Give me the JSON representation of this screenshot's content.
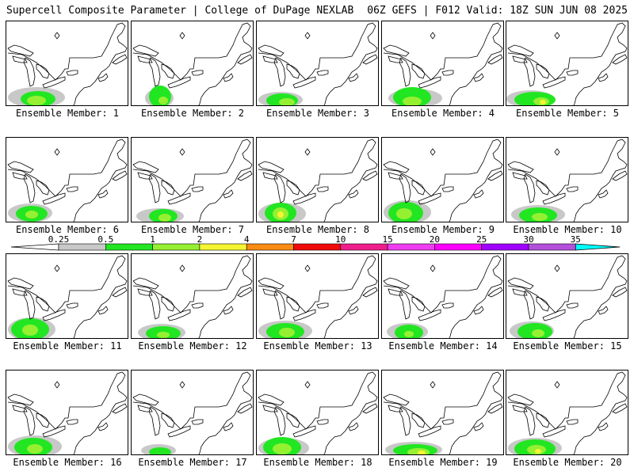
{
  "header": {
    "title_left": "Supercell Composite Parameter | College of DuPage NEXLAB",
    "title_right": "06Z GEFS | F012 Valid: 18Z SUN JUN 08 2025"
  },
  "legend": {
    "ticks": [
      "0.25",
      "0.5",
      "1",
      "2",
      "4",
      "7",
      "10",
      "15",
      "20",
      "25",
      "30",
      "35"
    ],
    "colors": [
      "#c8c8c8",
      "#22e622",
      "#96f032",
      "#f5f532",
      "#fa8c14",
      "#f00a0a",
      "#f01e8c",
      "#f03cf0",
      "#ff00ff",
      "#a000ff",
      "#b450dc",
      "#00ffff"
    ]
  },
  "panels": [
    {
      "label": "Ensemble Member: 1",
      "blobs": [
        {
          "level": 0,
          "cx": 38,
          "cy": 96,
          "rx": 36,
          "ry": 13
        },
        {
          "level": 1,
          "cx": 40,
          "cy": 98,
          "rx": 22,
          "ry": 10
        },
        {
          "level": 2,
          "cx": 38,
          "cy": 100,
          "rx": 12,
          "ry": 6
        }
      ]
    },
    {
      "label": "Ensemble Member: 2",
      "blobs": [
        {
          "level": 0,
          "cx": 35,
          "cy": 97,
          "rx": 18,
          "ry": 12
        },
        {
          "level": 1,
          "cx": 36,
          "cy": 95,
          "rx": 14,
          "ry": 14
        },
        {
          "level": 2,
          "cx": 40,
          "cy": 100,
          "rx": 6,
          "ry": 5
        }
      ]
    },
    {
      "label": "Ensemble Member: 3",
      "blobs": [
        {
          "level": 0,
          "cx": 30,
          "cy": 99,
          "rx": 28,
          "ry": 10
        },
        {
          "level": 1,
          "cx": 32,
          "cy": 100,
          "rx": 20,
          "ry": 9
        },
        {
          "level": 2,
          "cx": 38,
          "cy": 102,
          "rx": 10,
          "ry": 5
        }
      ]
    },
    {
      "label": "Ensemble Member: 4",
      "blobs": [
        {
          "level": 0,
          "cx": 42,
          "cy": 97,
          "rx": 34,
          "ry": 12
        },
        {
          "level": 1,
          "cx": 38,
          "cy": 96,
          "rx": 24,
          "ry": 13
        },
        {
          "level": 2,
          "cx": 38,
          "cy": 101,
          "rx": 12,
          "ry": 6
        }
      ]
    },
    {
      "label": "Ensemble Member: 5",
      "blobs": [
        {
          "level": 0,
          "cx": 30,
          "cy": 98,
          "rx": 30,
          "ry": 11
        },
        {
          "level": 1,
          "cx": 36,
          "cy": 99,
          "rx": 26,
          "ry": 10
        },
        {
          "level": 2,
          "cx": 44,
          "cy": 101,
          "rx": 10,
          "ry": 5
        },
        {
          "level": 3,
          "cx": 46,
          "cy": 102,
          "rx": 4,
          "ry": 3
        }
      ]
    },
    {
      "label": "Ensemble Member: 6",
      "blobs": [
        {
          "level": 0,
          "cx": 30,
          "cy": 95,
          "rx": 28,
          "ry": 12
        },
        {
          "level": 1,
          "cx": 32,
          "cy": 96,
          "rx": 20,
          "ry": 10
        },
        {
          "level": 2,
          "cx": 32,
          "cy": 97,
          "rx": 8,
          "ry": 5
        }
      ]
    },
    {
      "label": "Ensemble Member: 7",
      "blobs": [
        {
          "level": 0,
          "cx": 36,
          "cy": 99,
          "rx": 30,
          "ry": 10
        },
        {
          "level": 1,
          "cx": 40,
          "cy": 99,
          "rx": 18,
          "ry": 9
        },
        {
          "level": 2,
          "cx": 42,
          "cy": 101,
          "rx": 8,
          "ry": 5
        }
      ]
    },
    {
      "label": "Ensemble Member: 8",
      "blobs": [
        {
          "level": 0,
          "cx": 32,
          "cy": 96,
          "rx": 30,
          "ry": 14
        },
        {
          "level": 1,
          "cx": 30,
          "cy": 95,
          "rx": 20,
          "ry": 13
        },
        {
          "level": 2,
          "cx": 30,
          "cy": 96,
          "rx": 10,
          "ry": 8
        },
        {
          "level": 3,
          "cx": 30,
          "cy": 97,
          "rx": 4,
          "ry": 4
        }
      ]
    },
    {
      "label": "Ensemble Member: 9",
      "blobs": [
        {
          "level": 0,
          "cx": 32,
          "cy": 94,
          "rx": 30,
          "ry": 15
        },
        {
          "level": 1,
          "cx": 30,
          "cy": 95,
          "rx": 22,
          "ry": 14
        },
        {
          "level": 2,
          "cx": 28,
          "cy": 96,
          "rx": 10,
          "ry": 7
        }
      ]
    },
    {
      "label": "Ensemble Member: 10",
      "blobs": [
        {
          "level": 0,
          "cx": 40,
          "cy": 97,
          "rx": 34,
          "ry": 12
        },
        {
          "level": 1,
          "cx": 40,
          "cy": 98,
          "rx": 24,
          "ry": 10
        },
        {
          "level": 2,
          "cx": 42,
          "cy": 100,
          "rx": 10,
          "ry": 5
        }
      ]
    },
    {
      "label": "Ensemble Member: 11",
      "blobs": [
        {
          "level": 0,
          "cx": 32,
          "cy": 95,
          "rx": 30,
          "ry": 15
        },
        {
          "level": 1,
          "cx": 30,
          "cy": 95,
          "rx": 24,
          "ry": 14
        },
        {
          "level": 2,
          "cx": 30,
          "cy": 96,
          "rx": 10,
          "ry": 7
        }
      ]
    },
    {
      "label": "Ensemble Member: 12",
      "blobs": [
        {
          "level": 0,
          "cx": 38,
          "cy": 99,
          "rx": 30,
          "ry": 11
        },
        {
          "level": 1,
          "cx": 40,
          "cy": 100,
          "rx": 22,
          "ry": 9
        },
        {
          "level": 2,
          "cx": 40,
          "cy": 102,
          "rx": 8,
          "ry": 4
        }
      ]
    },
    {
      "label": "Ensemble Member: 13",
      "blobs": [
        {
          "level": 0,
          "cx": 36,
          "cy": 97,
          "rx": 34,
          "ry": 13
        },
        {
          "level": 1,
          "cx": 36,
          "cy": 98,
          "rx": 24,
          "ry": 11
        },
        {
          "level": 2,
          "cx": 38,
          "cy": 99,
          "rx": 10,
          "ry": 6
        }
      ]
    },
    {
      "label": "Ensemble Member: 14",
      "blobs": [
        {
          "level": 0,
          "cx": 32,
          "cy": 98,
          "rx": 26,
          "ry": 11
        },
        {
          "level": 1,
          "cx": 34,
          "cy": 99,
          "rx": 18,
          "ry": 10
        },
        {
          "level": 2,
          "cx": 34,
          "cy": 101,
          "rx": 6,
          "ry": 4
        }
      ]
    },
    {
      "label": "Ensemble Member: 15",
      "blobs": [
        {
          "level": 0,
          "cx": 32,
          "cy": 97,
          "rx": 28,
          "ry": 12
        },
        {
          "level": 1,
          "cx": 36,
          "cy": 98,
          "rx": 22,
          "ry": 11
        },
        {
          "level": 2,
          "cx": 40,
          "cy": 100,
          "rx": 8,
          "ry": 5
        }
      ]
    },
    {
      "label": "Ensemble Member: 16",
      "blobs": [
        {
          "level": 0,
          "cx": 36,
          "cy": 96,
          "rx": 34,
          "ry": 14
        },
        {
          "level": 1,
          "cx": 34,
          "cy": 97,
          "rx": 24,
          "ry": 12
        },
        {
          "level": 2,
          "cx": 36,
          "cy": 99,
          "rx": 10,
          "ry": 6
        }
      ]
    },
    {
      "label": "Ensemble Member: 17",
      "blobs": [
        {
          "level": 0,
          "cx": 34,
          "cy": 101,
          "rx": 22,
          "ry": 8
        },
        {
          "level": 1,
          "cx": 36,
          "cy": 103,
          "rx": 14,
          "ry": 6
        }
      ]
    },
    {
      "label": "Ensemble Member: 18",
      "blobs": [
        {
          "level": 0,
          "cx": 34,
          "cy": 98,
          "rx": 32,
          "ry": 13
        },
        {
          "level": 1,
          "cx": 32,
          "cy": 97,
          "rx": 24,
          "ry": 13
        },
        {
          "level": 2,
          "cx": 32,
          "cy": 99,
          "rx": 12,
          "ry": 7
        }
      ]
    },
    {
      "label": "Ensemble Member: 19",
      "blobs": [
        {
          "level": 0,
          "cx": 40,
          "cy": 100,
          "rx": 36,
          "ry": 10
        },
        {
          "level": 1,
          "cx": 42,
          "cy": 101,
          "rx": 28,
          "ry": 8
        },
        {
          "level": 2,
          "cx": 46,
          "cy": 103,
          "rx": 14,
          "ry": 5
        },
        {
          "level": 3,
          "cx": 50,
          "cy": 104,
          "rx": 5,
          "ry": 3
        }
      ]
    },
    {
      "label": "Ensemble Member: 20",
      "blobs": [
        {
          "level": 0,
          "cx": 36,
          "cy": 98,
          "rx": 34,
          "ry": 13
        },
        {
          "level": 1,
          "cx": 36,
          "cy": 99,
          "rx": 26,
          "ry": 12
        },
        {
          "level": 2,
          "cx": 38,
          "cy": 100,
          "rx": 12,
          "ry": 6
        },
        {
          "level": 3,
          "cx": 40,
          "cy": 102,
          "rx": 4,
          "ry": 3
        }
      ]
    }
  ]
}
